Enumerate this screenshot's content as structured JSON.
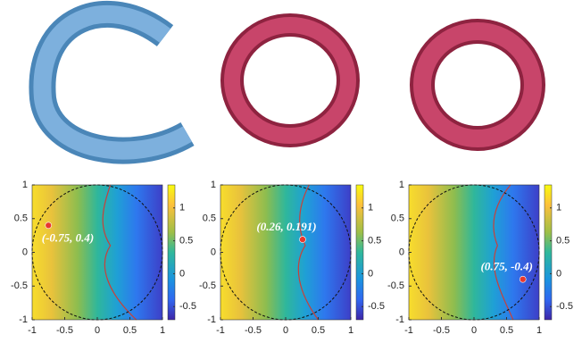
{
  "chart_data": [
    {
      "type": "heatmap",
      "xlim": [
        -1,
        1
      ],
      "ylim": [
        -1,
        1
      ],
      "xticks": [
        -1,
        -0.5,
        0,
        0.5,
        1
      ],
      "yticks": [
        -1,
        -0.5,
        0,
        0.5,
        1
      ],
      "clim": [
        -0.7,
        1.35
      ],
      "cticks": [
        -0.5,
        0,
        0.5,
        1
      ],
      "series": [
        {
          "color": "#e8382e",
          "x": [
            -0.75
          ],
          "values": [
            0.4
          ]
        }
      ],
      "annotation": "(-0.75, 0.4)"
    },
    {
      "type": "heatmap",
      "xlim": [
        -1,
        1
      ],
      "ylim": [
        -1,
        1
      ],
      "xticks": [
        -1,
        -0.5,
        0,
        0.5,
        1
      ],
      "yticks": [
        -1,
        -0.5,
        0,
        0.5,
        1
      ],
      "clim": [
        -0.7,
        1.35
      ],
      "cticks": [
        -0.5,
        0,
        0.5,
        1
      ],
      "series": [
        {
          "color": "#e8382e",
          "x": [
            0.26
          ],
          "values": [
            0.191
          ]
        }
      ],
      "annotation": "(0.26, 0.191)"
    },
    {
      "type": "heatmap",
      "xlim": [
        -1,
        1
      ],
      "ylim": [
        -1,
        1
      ],
      "xticks": [
        -1,
        -0.5,
        0,
        0.5,
        1
      ],
      "yticks": [
        -1,
        -0.5,
        0,
        0.5,
        1
      ],
      "clim": [
        -0.7,
        1.35
      ],
      "cticks": [
        -0.5,
        0,
        0.5,
        1
      ],
      "series": [
        {
          "color": "#e8382e",
          "x": [
            0.75
          ],
          "values": [
            -0.4
          ]
        }
      ],
      "annotation": "(0.75, -0.4)"
    }
  ]
}
